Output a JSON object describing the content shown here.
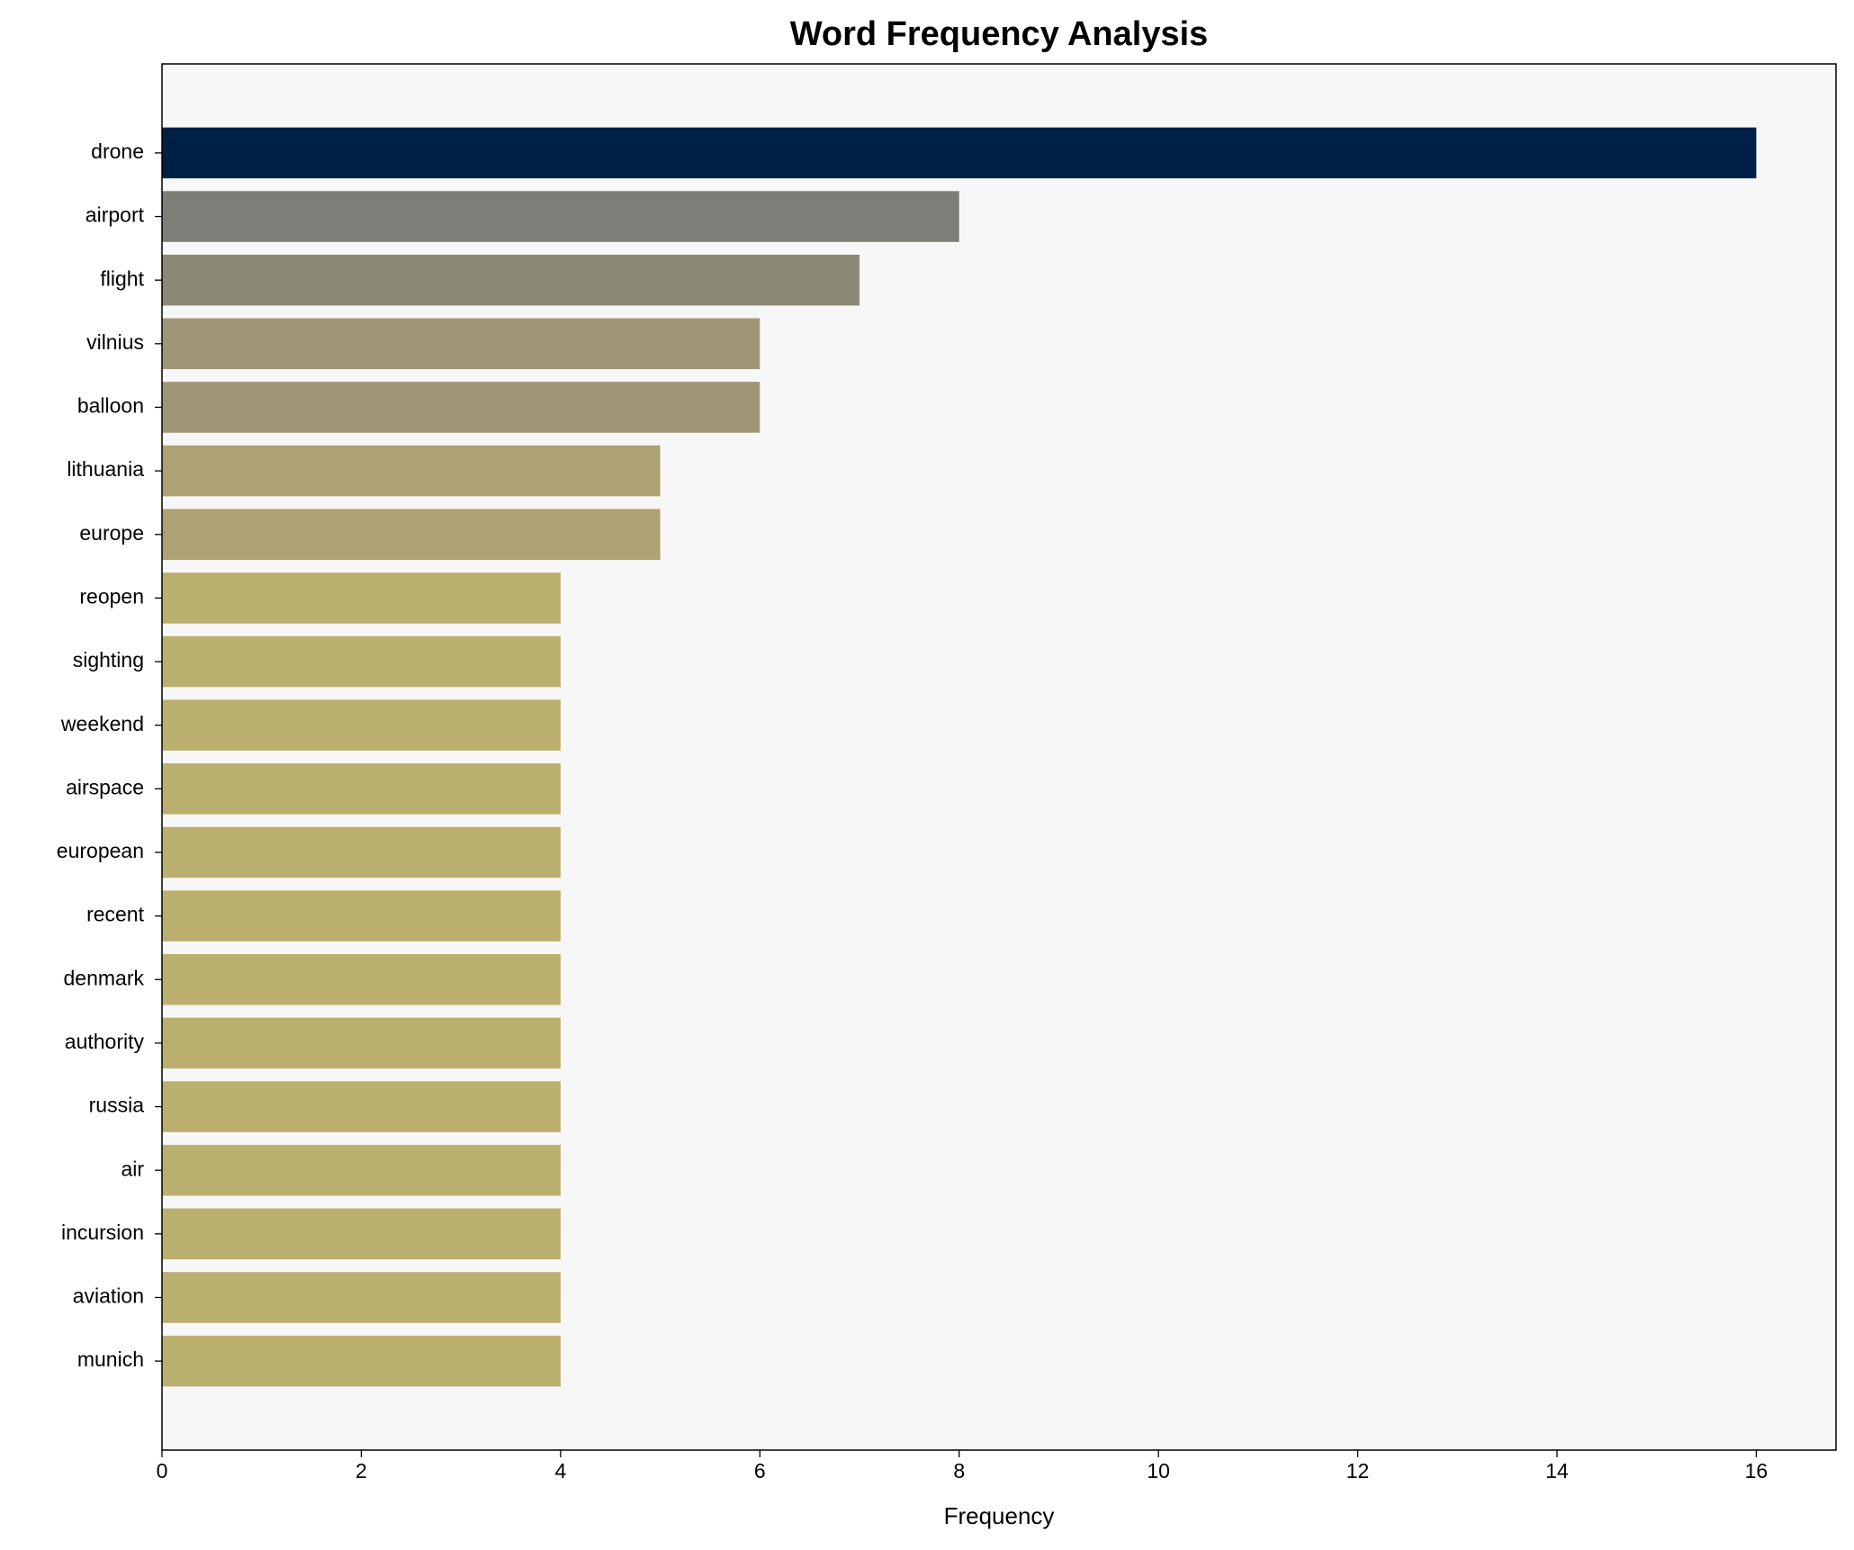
{
  "chart_data": {
    "type": "barh",
    "title": "Word Frequency Analysis",
    "x_label": "Frequency",
    "categories": [
      "drone",
      "airport",
      "flight",
      "vilnius",
      "balloon",
      "lithuania",
      "europe",
      "reopen",
      "sighting",
      "weekend",
      "airspace",
      "european",
      "recent",
      "denmark",
      "authority",
      "russia",
      "air",
      "incursion",
      "aviation",
      "munich"
    ],
    "values": [
      16,
      8,
      7,
      6,
      6,
      5,
      5,
      4,
      4,
      4,
      4,
      4,
      4,
      4,
      4,
      4,
      4,
      4,
      4,
      4
    ],
    "colors": [
      "#002147",
      "#7f7d78",
      "#8b8877",
      "#9e9676",
      "#9e9676",
      "#ada274",
      "#ada274",
      "#bbaf6f",
      "#bbaf6f",
      "#bbaf6f",
      "#bbaf6f",
      "#bbaf6f",
      "#bbaf6f",
      "#bbaf6f",
      "#bbaf6f",
      "#bbaf6f",
      "#bbaf6f",
      "#bbaf6f",
      "#bbaf6f",
      "#bbaf6f"
    ],
    "xlim": [
      0,
      16.8
    ],
    "xticks": [
      0,
      2,
      4,
      6,
      8,
      10,
      12,
      14,
      16
    ],
    "grid": false
  }
}
